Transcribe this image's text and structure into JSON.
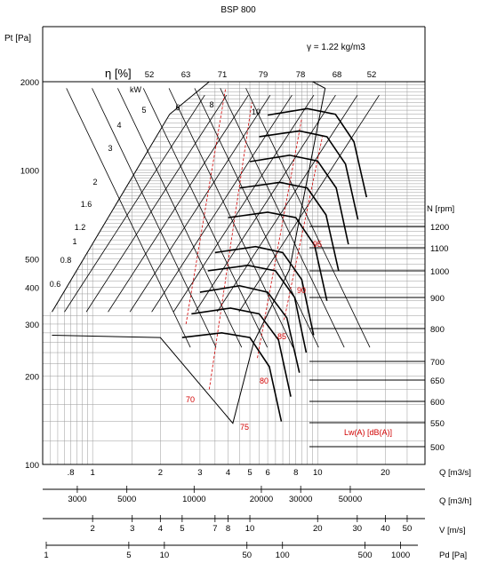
{
  "chart_data": {
    "type": "line",
    "title": "BSP 800",
    "density_note": "γ = 1.22 kg/m3",
    "yaxis": {
      "label": "Pt [Pa]",
      "scale": "log",
      "range": [
        100,
        2000
      ],
      "ticks": [
        "2000",
        "1000",
        "500",
        "400",
        "300",
        "200",
        "100"
      ]
    },
    "xaxis_flow_m3s": {
      "label": "Q [m3/s]",
      "scale": "log",
      "range": [
        0.6,
        30
      ],
      "ticks": [
        ".8",
        "1",
        "2",
        "3",
        "4",
        "5",
        "6",
        "8",
        "10",
        "20"
      ]
    },
    "xaxis_flow_m3h": {
      "label": "Q [m3/h]",
      "ticks": [
        "3000",
        "5000",
        "10000",
        "20000",
        "30000",
        "50000"
      ]
    },
    "xaxis_velocity": {
      "label": "V [m/s]",
      "ticks": [
        "2",
        "3",
        "4",
        "5",
        "7",
        "8",
        "10",
        "20",
        "30",
        "40",
        "50"
      ]
    },
    "xaxis_dynamic_pressure": {
      "label": "Pd [Pa]",
      "ticks": [
        "1",
        "5",
        "10",
        "50",
        "100",
        "500",
        "1000"
      ]
    },
    "efficiency": {
      "label": "η [%]",
      "values": [
        "52",
        "63",
        "71",
        "79",
        "78",
        "68",
        "52"
      ]
    },
    "power": {
      "unit": "kW",
      "values": [
        "10",
        "8",
        "6",
        "5",
        "4",
        "3",
        "2",
        "1.6",
        "1.2",
        "1",
        "0.8",
        "0.6"
      ]
    },
    "speed": {
      "label": "N [rpm]",
      "values": [
        "1200",
        "1100",
        "1000",
        "900",
        "800",
        "700",
        "650",
        "600",
        "550",
        "500"
      ],
      "series": [
        {
          "rpm": 1200,
          "points": [
            [
              6.0,
              1540
            ],
            [
              9.0,
              1620
            ],
            [
              12.0,
              1550
            ],
            [
              14.5,
              1250
            ],
            [
              16.5,
              810
            ]
          ]
        },
        {
          "rpm": 1100,
          "points": [
            [
              5.5,
              1300
            ],
            [
              8.3,
              1360
            ],
            [
              11.0,
              1300
            ],
            [
              13.3,
              1050
            ],
            [
              15.1,
              680
            ]
          ]
        },
        {
          "rpm": 1000,
          "points": [
            [
              5.0,
              1070
            ],
            [
              7.5,
              1125
            ],
            [
              10.0,
              1075
            ],
            [
              12.1,
              870
            ],
            [
              13.7,
              560
            ]
          ]
        },
        {
          "rpm": 900,
          "points": [
            [
              4.5,
              870
            ],
            [
              6.8,
              910
            ],
            [
              9.0,
              870
            ],
            [
              10.9,
              705
            ],
            [
              12.4,
              455
            ]
          ]
        },
        {
          "rpm": 800,
          "points": [
            [
              4.0,
              690
            ],
            [
              6.0,
              720
            ],
            [
              8.0,
              690
            ],
            [
              9.7,
              555
            ],
            [
              11.0,
              360
            ]
          ]
        },
        {
          "rpm": 700,
          "points": [
            [
              3.5,
              525
            ],
            [
              5.3,
              550
            ],
            [
              7.0,
              525
            ],
            [
              8.5,
              425
            ],
            [
              9.6,
              275
            ]
          ]
        },
        {
          "rpm": 650,
          "points": [
            [
              3.25,
              455
            ],
            [
              4.9,
              475
            ],
            [
              6.5,
              455
            ],
            [
              7.9,
              370
            ],
            [
              8.9,
              240
            ]
          ]
        },
        {
          "rpm": 600,
          "points": [
            [
              3.0,
              385
            ],
            [
              4.5,
              405
            ],
            [
              6.0,
              385
            ],
            [
              7.3,
              315
            ],
            [
              8.3,
              205
            ]
          ]
        },
        {
          "rpm": 550,
          "points": [
            [
              2.75,
              325
            ],
            [
              4.1,
              340
            ],
            [
              5.5,
              325
            ],
            [
              6.7,
              265
            ],
            [
              7.6,
              170
            ]
          ]
        },
        {
          "rpm": 500,
          "points": [
            [
              2.5,
              270
            ],
            [
              3.75,
              280
            ],
            [
              5.0,
              270
            ],
            [
              6.1,
              215
            ],
            [
              6.9,
              140
            ]
          ]
        }
      ]
    },
    "sound": {
      "label": "Lw(A)  [dB(A)]",
      "values": [
        "95",
        "90",
        "85",
        "80",
        "75",
        "70"
      ]
    }
  }
}
